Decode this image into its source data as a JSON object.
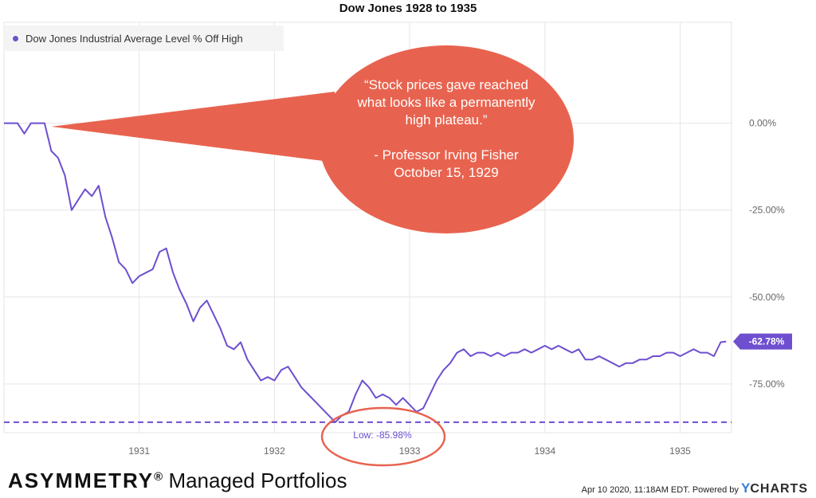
{
  "title": "Dow Jones 1928 to 1935",
  "legend": {
    "label": "Dow Jones Industrial Average Level % Off High",
    "color": "#6e4fd0"
  },
  "annotation": {
    "lines": [
      "“Stock prices gave reached",
      "what looks like a permanently",
      "high plateau.”",
      "",
      "- Professor Irving Fisher",
      "October 15, 1929"
    ],
    "bubble_color": "#e8634f"
  },
  "low_label": "Low: -85.98%",
  "current_label": "-62.78%",
  "brand": {
    "strong": "ASYMMETRY",
    "reg": "®",
    "rest": " Managed Portfolios"
  },
  "footer": {
    "timestamp": "Apr 10 2020, 11:18AM EDT.",
    "powered": "Powered by",
    "logo_y": "Y",
    "logo_rest": "CHARTS"
  },
  "chart_data": {
    "type": "line",
    "title": "Dow Jones 1928 to 1935",
    "xlabel": "",
    "ylabel": "",
    "x_ticks": [
      "1931",
      "1932",
      "1933",
      "1934",
      "1935"
    ],
    "y_ticks": [
      "0.00%",
      "-25.00%",
      "-50.00%",
      "-75.00%"
    ],
    "ylim": [
      -89,
      29
    ],
    "xlim": [
      1930.0,
      1935.38
    ],
    "grid": true,
    "legend_position": "top-left",
    "series": [
      {
        "name": "Dow Jones Industrial Average Level % Off High",
        "points": [
          [
            1930.0,
            0
          ],
          [
            1930.1,
            0
          ],
          [
            1930.15,
            -3
          ],
          [
            1930.2,
            0
          ],
          [
            1930.3,
            0
          ],
          [
            1930.35,
            -8
          ],
          [
            1930.4,
            -10
          ],
          [
            1930.45,
            -15
          ],
          [
            1930.5,
            -25
          ],
          [
            1930.55,
            -22
          ],
          [
            1930.6,
            -19
          ],
          [
            1930.65,
            -21
          ],
          [
            1930.7,
            -18
          ],
          [
            1930.75,
            -27
          ],
          [
            1930.8,
            -33
          ],
          [
            1930.85,
            -40
          ],
          [
            1930.9,
            -42
          ],
          [
            1930.95,
            -46
          ],
          [
            1931.0,
            -44
          ],
          [
            1931.05,
            -43
          ],
          [
            1931.1,
            -42
          ],
          [
            1931.15,
            -37
          ],
          [
            1931.2,
            -36
          ],
          [
            1931.25,
            -43
          ],
          [
            1931.3,
            -48
          ],
          [
            1931.35,
            -52
          ],
          [
            1931.4,
            -57
          ],
          [
            1931.45,
            -53
          ],
          [
            1931.5,
            -51
          ],
          [
            1931.55,
            -55
          ],
          [
            1931.6,
            -59
          ],
          [
            1931.65,
            -64
          ],
          [
            1931.7,
            -65
          ],
          [
            1931.75,
            -63
          ],
          [
            1931.8,
            -68
          ],
          [
            1931.85,
            -71
          ],
          [
            1931.9,
            -74
          ],
          [
            1931.95,
            -73
          ],
          [
            1932.0,
            -74
          ],
          [
            1932.05,
            -71
          ],
          [
            1932.1,
            -70
          ],
          [
            1932.15,
            -73
          ],
          [
            1932.2,
            -76
          ],
          [
            1932.25,
            -78
          ],
          [
            1932.3,
            -80
          ],
          [
            1932.35,
            -82
          ],
          [
            1932.4,
            -84
          ],
          [
            1932.45,
            -86
          ],
          [
            1932.5,
            -84
          ],
          [
            1932.55,
            -83
          ],
          [
            1932.6,
            -78
          ],
          [
            1932.65,
            -74
          ],
          [
            1932.7,
            -76
          ],
          [
            1932.75,
            -79
          ],
          [
            1932.8,
            -78
          ],
          [
            1932.85,
            -79
          ],
          [
            1932.9,
            -81
          ],
          [
            1932.95,
            -79
          ],
          [
            1933.0,
            -81
          ],
          [
            1933.05,
            -83
          ],
          [
            1933.1,
            -82
          ],
          [
            1933.15,
            -78
          ],
          [
            1933.2,
            -74
          ],
          [
            1933.25,
            -71
          ],
          [
            1933.3,
            -69
          ],
          [
            1933.35,
            -66
          ],
          [
            1933.4,
            -65
          ],
          [
            1933.45,
            -67
          ],
          [
            1933.5,
            -66
          ],
          [
            1933.55,
            -66
          ],
          [
            1933.6,
            -67
          ],
          [
            1933.65,
            -66
          ],
          [
            1933.7,
            -67
          ],
          [
            1933.75,
            -66
          ],
          [
            1933.8,
            -66
          ],
          [
            1933.85,
            -65
          ],
          [
            1933.9,
            -66
          ],
          [
            1933.95,
            -65
          ],
          [
            1934.0,
            -64
          ],
          [
            1934.05,
            -65
          ],
          [
            1934.1,
            -64
          ],
          [
            1934.15,
            -65
          ],
          [
            1934.2,
            -66
          ],
          [
            1934.25,
            -65
          ],
          [
            1934.3,
            -68
          ],
          [
            1934.35,
            -68
          ],
          [
            1934.4,
            -67
          ],
          [
            1934.45,
            -68
          ],
          [
            1934.5,
            -69
          ],
          [
            1934.55,
            -70
          ],
          [
            1934.6,
            -69
          ],
          [
            1934.65,
            -69
          ],
          [
            1934.7,
            -68
          ],
          [
            1934.75,
            -68
          ],
          [
            1934.8,
            -67
          ],
          [
            1934.85,
            -67
          ],
          [
            1934.9,
            -66
          ],
          [
            1934.95,
            -66
          ],
          [
            1935.0,
            -67
          ],
          [
            1935.05,
            -66
          ],
          [
            1935.1,
            -65
          ],
          [
            1935.15,
            -66
          ],
          [
            1935.2,
            -66
          ],
          [
            1935.25,
            -67
          ],
          [
            1935.3,
            -63
          ],
          [
            1935.34,
            -62.78
          ]
        ]
      }
    ],
    "annotations": [
      {
        "label": "Low: -85.98%",
        "y": -85.98,
        "style": "dashed-horizontal-line"
      },
      {
        "label": "-62.78%",
        "y": -62.78,
        "style": "last-value-tag"
      }
    ]
  }
}
